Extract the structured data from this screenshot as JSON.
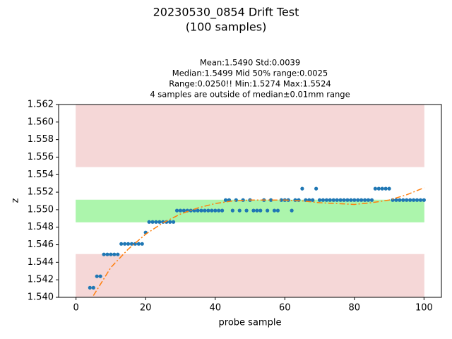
{
  "chart_data": {
    "type": "scatter",
    "title": [
      "20230530_0854 Drift Test",
      "(100 samples)"
    ],
    "subtitle": [
      "Mean:1.5490  Std:0.0039",
      "Median:1.5499  Mid 50% range:0.0025",
      "Range:0.0250!!  Min:1.5274  Max:1.5524",
      "4 samples are outside of median±0.01mm range"
    ],
    "x_label": "probe sample",
    "y_label": "z",
    "xlim": [
      -5,
      105
    ],
    "ylim": [
      1.54,
      1.562
    ],
    "xticks": [
      0,
      20,
      40,
      60,
      80,
      100
    ],
    "yticks": [
      {
        "value": 1.54,
        "label": "1.540"
      },
      1.542,
      1.544,
      1.546,
      1.548,
      {
        "value": 1.55,
        "label": "1.550"
      },
      1.552,
      1.554,
      1.556,
      1.558,
      {
        "value": 1.56,
        "label": "1.560"
      },
      1.562
    ],
    "bands": [
      {
        "x": [
          0,
          100
        ],
        "y": [
          1.5549,
          1.562
        ],
        "color": "#ffe0e0"
      },
      {
        "x": [
          0,
          100
        ],
        "y": [
          1.54,
          1.5449
        ],
        "color": "#ffe0e0"
      },
      {
        "x": [
          0,
          100
        ],
        "y": [
          1.5486,
          1.5511
        ],
        "color": "#b3ffb3"
      }
    ],
    "series": [
      {
        "color": "#1f77b4",
        "x": [
          4,
          5,
          6,
          7,
          8,
          9,
          10,
          11,
          12,
          13,
          14,
          15,
          16,
          17,
          18,
          19,
          20,
          21,
          22,
          23,
          24,
          25,
          26,
          27,
          28,
          29,
          30,
          31,
          32,
          33,
          34,
          35,
          36,
          37,
          38,
          39,
          40,
          41,
          42,
          43,
          44,
          45,
          46,
          47,
          48,
          49,
          50,
          51,
          52,
          53,
          54,
          55,
          56,
          57,
          58,
          59,
          60,
          61,
          62,
          63,
          64,
          65,
          66,
          67,
          68,
          69,
          70,
          71,
          72,
          73,
          74,
          75,
          76,
          77,
          78,
          79,
          80,
          81,
          82,
          83,
          84,
          85,
          86,
          87,
          88,
          89,
          90,
          91,
          92,
          93,
          94,
          95,
          96,
          97,
          98,
          99,
          100
        ],
        "values": [
          1.5411,
          1.5411,
          1.5424,
          1.5424,
          1.5449,
          1.5449,
          1.5449,
          1.5449,
          1.5449,
          1.5461,
          1.5461,
          1.5461,
          1.5461,
          1.5461,
          1.5461,
          1.5461,
          1.5474,
          1.5486,
          1.5486,
          1.5486,
          1.5486,
          1.5486,
          1.5486,
          1.5486,
          1.5486,
          1.5499,
          1.5499,
          1.5499,
          1.5499,
          1.5499,
          1.5499,
          1.5499,
          1.5499,
          1.5499,
          1.5499,
          1.5499,
          1.5499,
          1.5499,
          1.5499,
          1.5511,
          1.5511,
          1.5499,
          1.5511,
          1.5499,
          1.5511,
          1.5499,
          1.5511,
          1.5499,
          1.5499,
          1.5499,
          1.5511,
          1.5499,
          1.5511,
          1.5499,
          1.5499,
          1.5511,
          1.5511,
          1.5511,
          1.5499,
          1.5511,
          1.5511,
          1.5524,
          1.5511,
          1.5511,
          1.5511,
          1.5524,
          1.5511,
          1.5511,
          1.5511,
          1.5511,
          1.5511,
          1.5511,
          1.5511,
          1.5511,
          1.5511,
          1.5511,
          1.5511,
          1.5511,
          1.5511,
          1.5511,
          1.5511,
          1.5511,
          1.5524,
          1.5524,
          1.5524,
          1.5524,
          1.5524,
          1.5511,
          1.5511,
          1.5511,
          1.5511,
          1.5511,
          1.5511,
          1.5511,
          1.5511,
          1.5511,
          1.5511
        ]
      }
    ],
    "fit": {
      "color": "#ff7f0e",
      "x": [
        5,
        10,
        15,
        20,
        25,
        30,
        35,
        40,
        45,
        50,
        55,
        60,
        65,
        70,
        75,
        80,
        85,
        90,
        95,
        100
      ],
      "values": [
        1.5402,
        1.5434,
        1.5455,
        1.5472,
        1.5485,
        1.5495,
        1.5502,
        1.5507,
        1.551,
        1.5511,
        1.5511,
        1.5511,
        1.551,
        1.5508,
        1.5507,
        1.5506,
        1.5508,
        1.5511,
        1.5517,
        1.5525
      ]
    }
  }
}
